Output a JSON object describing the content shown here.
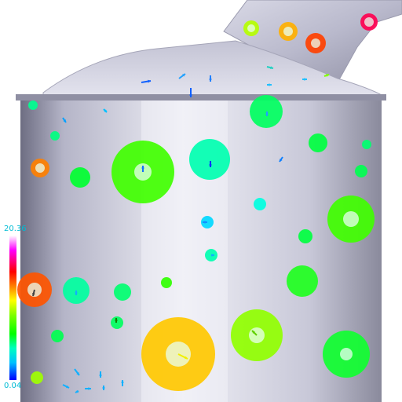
{
  "legend": {
    "max_label": "20.36",
    "min_label": "0.04",
    "label_color": "#00bcd4",
    "stops": [
      "#ffffff",
      "#ff00ff",
      "#ff0000",
      "#ff8000",
      "#ffff00",
      "#80ff00",
      "#00ff00",
      "#00ffc0",
      "#00c0ff",
      "#0000ff"
    ]
  },
  "colors": {
    "geometry_light": "#e6e6ef",
    "geometry_dark": "#7a7a8c",
    "background": "#ffffff"
  },
  "glyph_count": 60
}
